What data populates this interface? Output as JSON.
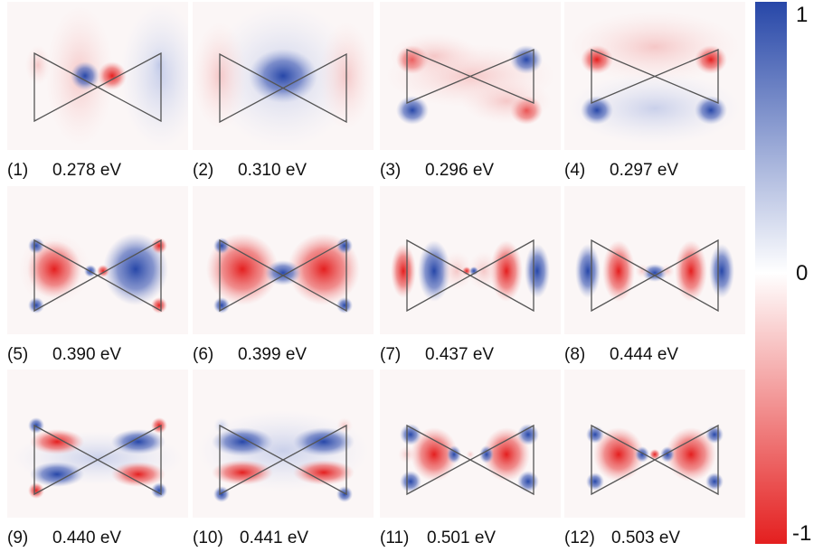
{
  "colorbar": {
    "ticks": [
      "1",
      "0",
      "-1"
    ],
    "colors": {
      "max": "#2747a8",
      "zero": "#ffffff",
      "min": "#e41f1f"
    }
  },
  "panels": [
    {
      "index": "(1)",
      "energy": "0.278 eV"
    },
    {
      "index": "(2)",
      "energy": "0.310 eV"
    },
    {
      "index": "(3)",
      "energy": "0.296 eV"
    },
    {
      "index": "(4)",
      "energy": "0.297 eV"
    },
    {
      "index": "(5)",
      "energy": "0.390 eV"
    },
    {
      "index": "(6)",
      "energy": "0.399 eV"
    },
    {
      "index": "(7)",
      "energy": "0.437 eV"
    },
    {
      "index": "(8)",
      "energy": "0.444 eV"
    },
    {
      "index": "(9)",
      "energy": "0.440 eV"
    },
    {
      "index": "(10)",
      "energy": "0.441 eV"
    },
    {
      "index": "(11)",
      "energy": "0.501 eV"
    },
    {
      "index": "(12)",
      "energy": "0.503 eV"
    }
  ]
}
